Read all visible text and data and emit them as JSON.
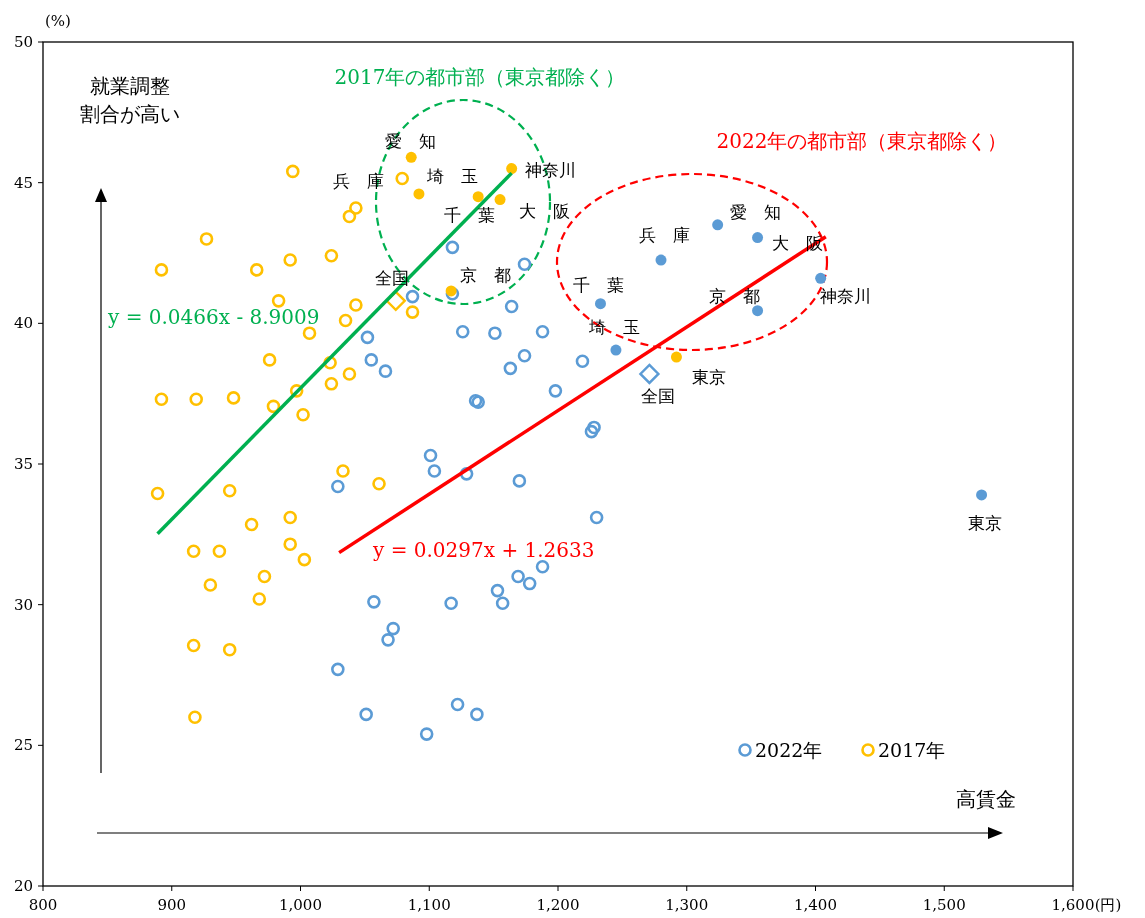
{
  "chart_data": {
    "type": "scatter",
    "xlabel": "(円)",
    "ylabel": "(%)",
    "xlim": [
      800,
      1600
    ],
    "xticks": [
      800,
      900,
      {
        "value": 1000,
        "label": "1,000"
      },
      {
        "value": 1100,
        "label": "1,100"
      },
      {
        "value": 1200,
        "label": "1,200"
      },
      {
        "value": 1300,
        "label": "1,300"
      },
      {
        "value": 1400,
        "label": "1,400"
      },
      {
        "value": 1500,
        "label": "1,500"
      },
      {
        "value": 1600,
        "label": "1,600"
      }
    ],
    "ylim": [
      20,
      50
    ],
    "yticks": [
      20,
      25,
      30,
      35,
      40,
      45,
      50
    ],
    "grid": false,
    "legend": "bottom right",
    "marker": "circle",
    "series": [
      {
        "name": "2022年",
        "color": "#5b9bd5",
        "x": [
          1118,
          1174,
          1087,
          1118,
          1164,
          1126,
          1151,
          1188,
          1052,
          1055,
          1066,
          1174,
          1163,
          1219,
          1136,
          1138,
          1198,
          1226,
          1228,
          1101,
          1104,
          1129,
          1170,
          1029,
          1230,
          1188,
          1169,
          1178,
          1153,
          1157,
          1057,
          1117,
          1072,
          1068,
          1029,
          1051,
          1122,
          1137,
          1098
        ],
        "values": [
          42.7,
          42.1,
          40.95,
          41.05,
          40.6,
          39.7,
          39.65,
          39.7,
          39.5,
          38.7,
          38.3,
          38.85,
          38.4,
          38.65,
          37.25,
          37.2,
          37.6,
          36.15,
          36.3,
          35.3,
          34.75,
          34.65,
          34.4,
          34.2,
          33.1,
          31.35,
          31.0,
          30.75,
          30.5,
          30.05,
          30.1,
          30.05,
          29.15,
          28.75,
          27.7,
          26.1,
          26.45,
          26.1,
          25.4
        ]
      },
      {
        "name": "2017年",
        "color": "#ffc000",
        "x": [
          994,
          927,
          892,
          966,
          992,
          1024,
          1043,
          1038,
          1087,
          1043,
          1035,
          1007,
          976,
          1023,
          1038,
          1024,
          997,
          983,
          979,
          1002,
          892,
          919,
          948,
          1033,
          1061,
          889,
          945,
          962,
          992,
          992,
          917,
          937,
          1003,
          930,
          972,
          968,
          945,
          917,
          918,
          1079
        ],
        "values": [
          45.4,
          43.0,
          41.9,
          41.9,
          42.25,
          42.4,
          44.1,
          43.8,
          40.4,
          40.65,
          40.1,
          39.65,
          38.7,
          38.6,
          38.2,
          37.85,
          37.6,
          40.8,
          37.05,
          36.75,
          37.3,
          37.3,
          37.35,
          34.75,
          34.3,
          33.95,
          34.05,
          32.85,
          33.1,
          32.15,
          31.9,
          31.9,
          31.6,
          30.7,
          31.0,
          30.2,
          28.4,
          28.55,
          26.0,
          45.15
        ]
      },
      {
        "color": "#ffc000",
        "x": [
          1086,
          1092,
          1164,
          1138,
          1155,
          1117,
          1292
        ],
        "values": [
          45.9,
          44.6,
          45.5,
          44.5,
          44.4,
          41.15,
          38.8
        ]
      },
      {
        "color": "#5b9bd5",
        "x": [
          1324,
          1355,
          1280,
          1233,
          1355,
          1245,
          1404,
          1529
        ],
        "values": [
          43.5,
          43.05,
          42.25,
          40.7,
          40.45,
          39.05,
          41.6,
          33.9
        ]
      },
      {
        "color": "#ffc000",
        "marker": "diamond",
        "x": [
          1074
        ],
        "values": [
          40.8
        ]
      },
      {
        "color": "#5b9bd5",
        "marker": "diamond",
        "x": [
          1271
        ],
        "values": [
          38.2
        ]
      },
      {
        "type": "line",
        "color": "#00b050",
        "marker": "none",
        "x": [
          889,
          1164
        ],
        "values": [
          32.52,
          45.34
        ]
      },
      {
        "type": "line",
        "color": "#ff0000",
        "marker": "none",
        "x": [
          1030,
          1408
        ],
        "values": [
          31.85,
          43.08
        ]
      }
    ],
    "annotations": [
      "2017年の都市部（東京都除く）",
      "2022年の都市部（東京都除く）",
      "y = 0.0466x - 8.9009",
      "y = 0.0297x + 1.2633",
      "就業調整割合が高い",
      "高賃金",
      {
        "text": "愛　知",
        "x": 1086,
        "y": 45.9
      },
      {
        "text": "兵　庫",
        "x": 1079,
        "y": 45.15
      },
      {
        "text": "埼　玉",
        "x": 1092,
        "y": 44.6
      },
      {
        "text": "神奈川",
        "x": 1164,
        "y": 45.5
      },
      {
        "text": "千　葉",
        "x": 1138,
        "y": 44.5
      },
      {
        "text": "大　阪",
        "x": 1155,
        "y": 44.4
      },
      {
        "text": "京　都",
        "x": 1117,
        "y": 41.15
      },
      {
        "text": "全国",
        "x": 1074,
        "y": 40.8
      },
      {
        "text": "東京",
        "x": 1292,
        "y": 38.8
      },
      {
        "text": "愛　知",
        "x": 1324,
        "y": 43.5
      },
      {
        "text": "兵　庫",
        "x": 1280,
        "y": 42.25
      },
      {
        "text": "千　葉",
        "x": 1233,
        "y": 40.7
      },
      {
        "text": "埼　玉",
        "x": 1245,
        "y": 39.05
      },
      {
        "text": "京　都",
        "x": 1355,
        "y": 40.45
      },
      {
        "text": "大　阪",
        "x": 1355,
        "y": 43.05
      },
      {
        "text": "神奈川",
        "x": 1404,
        "y": 41.6
      },
      {
        "text": "東京",
        "x": 1529,
        "y": 33.9
      },
      {
        "text": "全国",
        "x": 1271,
        "y": 38.2
      }
    ]
  }
}
